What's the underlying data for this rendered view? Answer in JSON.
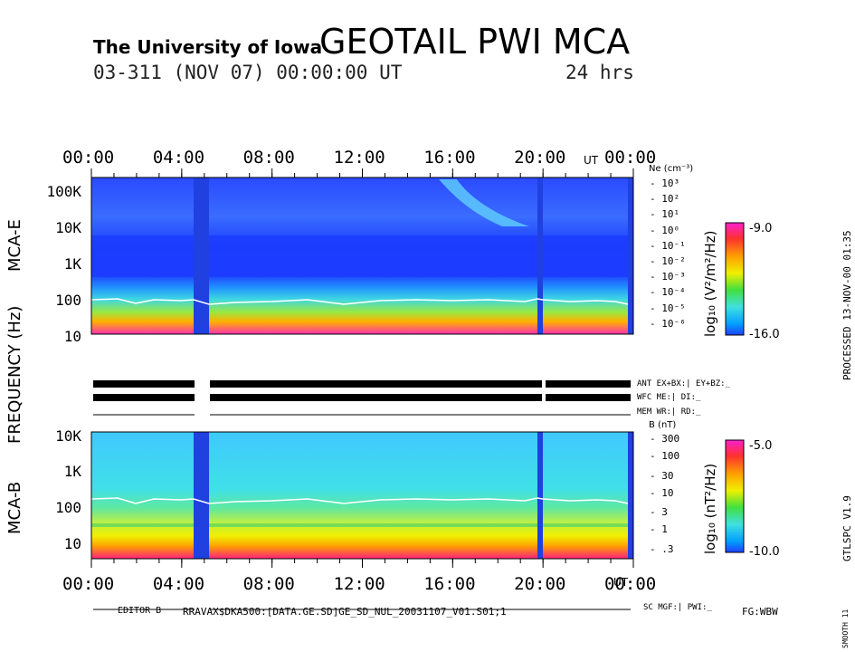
{
  "header": {
    "institution": "The University of Iowa",
    "title": "GEOTAIL  PWI  MCA",
    "date_line": "03-311  (NOV 07)  00:00:00  UT",
    "duration": "24  hrs"
  },
  "axes": {
    "time_ticks": [
      "00:00",
      "04:00",
      "08:00",
      "12:00",
      "16:00",
      "20:00",
      "00:00"
    ],
    "ut_label": "UT",
    "freq_label": "FREQUENCY  (Hz)",
    "mca_e_label": "MCA-E",
    "mca_b_label": "MCA-B",
    "e_freq_ticks": [
      "100K",
      "10K",
      "1K",
      "100",
      "10"
    ],
    "b_freq_ticks": [
      "10K",
      "1K",
      "100",
      "10"
    ],
    "ne_label": "Ne (cm⁻³)",
    "ne_ticks": [
      "10³",
      "10²",
      "10¹",
      "10⁰",
      "10⁻¹",
      "10⁻²",
      "10⁻³",
      "10⁻⁴",
      "10⁻⁵",
      "10⁻⁶"
    ],
    "b_label": "B (nT)",
    "b_ticks": [
      "300",
      "100",
      "30",
      "10",
      "3",
      "1",
      ".3"
    ]
  },
  "colorbars": {
    "e_label": "log₁₀ (V²/m²/Hz)",
    "e_max": "-9.0",
    "e_min": "-16.0",
    "b_label": "log₁₀ (nT²/Hz)",
    "b_max": "-5.0",
    "b_min": "-10.0",
    "palette": [
      "#2040ff",
      "#00a0ff",
      "#40e0e0",
      "#40e040",
      "#e0f000",
      "#ffc000",
      "#ff4040",
      "#ff20c0"
    ]
  },
  "status": {
    "ant": "ANT EX+BX:| EY+BZ:_",
    "wfc": "WFC ME:|     DI:_",
    "mem": "MEM WR:|     RD:_",
    "sc": "SC MGF:|     PWI:_"
  },
  "side": {
    "processed": "PROCESSED 13-NOV-00  01:35",
    "version": "GTLSPC    V1.9",
    "smooth": "SMOOTH 11"
  },
  "footer": {
    "editor": "EDITOR B",
    "file": "RRAVAX$DKA500:[DATA.GE.SD]GE_SD_NUL_20031107_V01.S01;1",
    "fg": "FG:WBW"
  },
  "chart_data": {
    "type": "heatmap",
    "x_range_hours": [
      0,
      24
    ],
    "data_gaps_hours": [
      [
        4.5,
        5.1
      ],
      [
        19.85,
        20.0
      ],
      [
        23.8,
        24.0
      ]
    ],
    "panels": [
      {
        "name": "MCA-E",
        "ylim_hz": [
          5,
          400000
        ],
        "y_scale": "log",
        "bands": [
          {
            "freq_hz": [
              5,
              15
            ],
            "level": "magenta-red"
          },
          {
            "freq_hz": [
              15,
              40
            ],
            "level": "orange-yellow"
          },
          {
            "freq_hz": [
              40,
              120
            ],
            "level": "green-cyan"
          },
          {
            "freq_hz": [
              120,
              400000
            ],
            "level": "blue"
          }
        ],
        "white_trace_hz": 180
      },
      {
        "name": "MCA-B",
        "ylim_hz": [
          5,
          12000
        ],
        "y_scale": "log",
        "bands": [
          {
            "freq_hz": [
              5,
              12
            ],
            "level": "red-magenta"
          },
          {
            "freq_hz": [
              12,
              40
            ],
            "level": "yellow"
          },
          {
            "freq_hz": [
              40,
              150
            ],
            "level": "green-yellow"
          },
          {
            "freq_hz": [
              150,
              12000
            ],
            "level": "cyan"
          }
        ],
        "white_trace_hz": 180
      }
    ]
  }
}
